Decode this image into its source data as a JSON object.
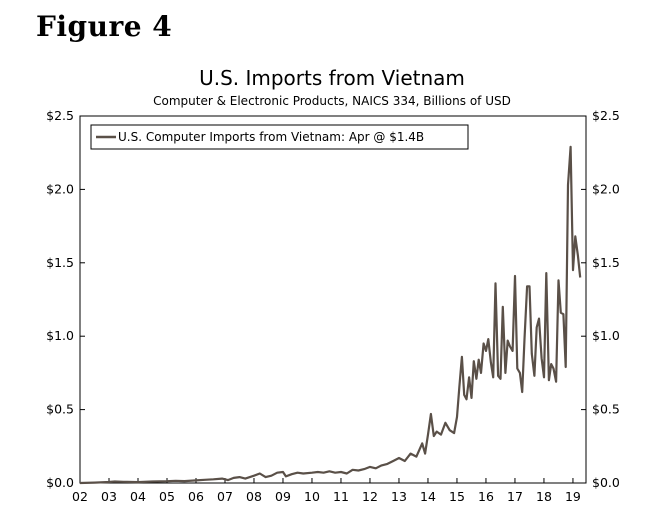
{
  "figure_label": "Figure 4",
  "chart_data": {
    "type": "line",
    "title": "U.S. Imports from Vietnam",
    "subtitle": "Computer & Electronic Products, NAICS 334, Billions of USD",
    "xlabel": "",
    "ylabel": "",
    "x_tick_labels": [
      "02",
      "03",
      "04",
      "05",
      "06",
      "07",
      "08",
      "09",
      "10",
      "11",
      "12",
      "13",
      "14",
      "15",
      "16",
      "17",
      "18",
      "19"
    ],
    "y_tick_labels": [
      "$0.0",
      "$0.5",
      "$1.0",
      "$1.5",
      "$2.0",
      "$2.5"
    ],
    "y_ticks": [
      0,
      0.5,
      1.0,
      1.5,
      2.0,
      2.5
    ],
    "ylim": [
      0,
      2.5
    ],
    "xlim": [
      2002.0,
      2019.45
    ],
    "grid": false,
    "legend_position": "top-left",
    "line_color": "#5a5048",
    "series": [
      {
        "name": "U.S. Computer Imports from Vietnam: Apr @ $1.4B",
        "x": [
          2002.0,
          2002.5,
          2003.0,
          2003.2,
          2003.5,
          2004.0,
          2004.5,
          2005.0,
          2005.3,
          2005.6,
          2006.0,
          2006.3,
          2006.6,
          2006.9,
          2007.1,
          2007.3,
          2007.5,
          2007.7,
          2008.0,
          2008.2,
          2008.4,
          2008.6,
          2008.8,
          2009.0,
          2009.1,
          2009.3,
          2009.5,
          2009.7,
          2010.0,
          2010.2,
          2010.4,
          2010.6,
          2010.8,
          2011.0,
          2011.2,
          2011.4,
          2011.6,
          2011.8,
          2012.0,
          2012.2,
          2012.4,
          2012.6,
          2012.8,
          2013.0,
          2013.2,
          2013.4,
          2013.6,
          2013.8,
          2013.9,
          2014.0,
          2014.1,
          2014.2,
          2014.3,
          2014.45,
          2014.6,
          2014.75,
          2014.9,
          2015.0,
          2015.08,
          2015.17,
          2015.25,
          2015.33,
          2015.42,
          2015.5,
          2015.58,
          2015.67,
          2015.75,
          2015.83,
          2015.92,
          2016.0,
          2016.08,
          2016.17,
          2016.25,
          2016.33,
          2016.42,
          2016.5,
          2016.58,
          2016.67,
          2016.75,
          2016.83,
          2016.92,
          2017.0,
          2017.08,
          2017.17,
          2017.25,
          2017.33,
          2017.42,
          2017.5,
          2017.58,
          2017.67,
          2017.75,
          2017.83,
          2017.92,
          2018.0,
          2018.08,
          2018.17,
          2018.25,
          2018.33,
          2018.42,
          2018.5,
          2018.58,
          2018.67,
          2018.75,
          2018.83,
          2018.92,
          2019.0,
          2019.08,
          2019.17,
          2019.25
        ],
        "y": [
          0.0,
          0.003,
          0.007,
          0.01,
          0.008,
          0.006,
          0.01,
          0.012,
          0.015,
          0.013,
          0.018,
          0.022,
          0.025,
          0.03,
          0.02,
          0.035,
          0.04,
          0.03,
          0.05,
          0.065,
          0.04,
          0.05,
          0.07,
          0.075,
          0.045,
          0.06,
          0.07,
          0.065,
          0.07,
          0.075,
          0.07,
          0.08,
          0.07,
          0.075,
          0.065,
          0.09,
          0.085,
          0.095,
          0.11,
          0.1,
          0.12,
          0.13,
          0.15,
          0.17,
          0.15,
          0.2,
          0.18,
          0.27,
          0.2,
          0.33,
          0.47,
          0.32,
          0.35,
          0.33,
          0.41,
          0.36,
          0.34,
          0.45,
          0.65,
          0.86,
          0.6,
          0.57,
          0.72,
          0.58,
          0.83,
          0.71,
          0.84,
          0.75,
          0.95,
          0.9,
          0.98,
          0.82,
          0.72,
          1.36,
          0.73,
          0.71,
          1.2,
          0.75,
          0.97,
          0.93,
          0.9,
          1.41,
          0.78,
          0.75,
          0.62,
          0.98,
          1.34,
          1.34,
          0.88,
          0.73,
          1.06,
          1.12,
          0.85,
          0.72,
          1.43,
          0.7,
          0.81,
          0.78,
          0.69,
          1.38,
          1.16,
          1.15,
          0.79,
          2.03,
          2.29,
          1.45,
          1.68,
          1.55,
          1.4
        ]
      }
    ]
  }
}
